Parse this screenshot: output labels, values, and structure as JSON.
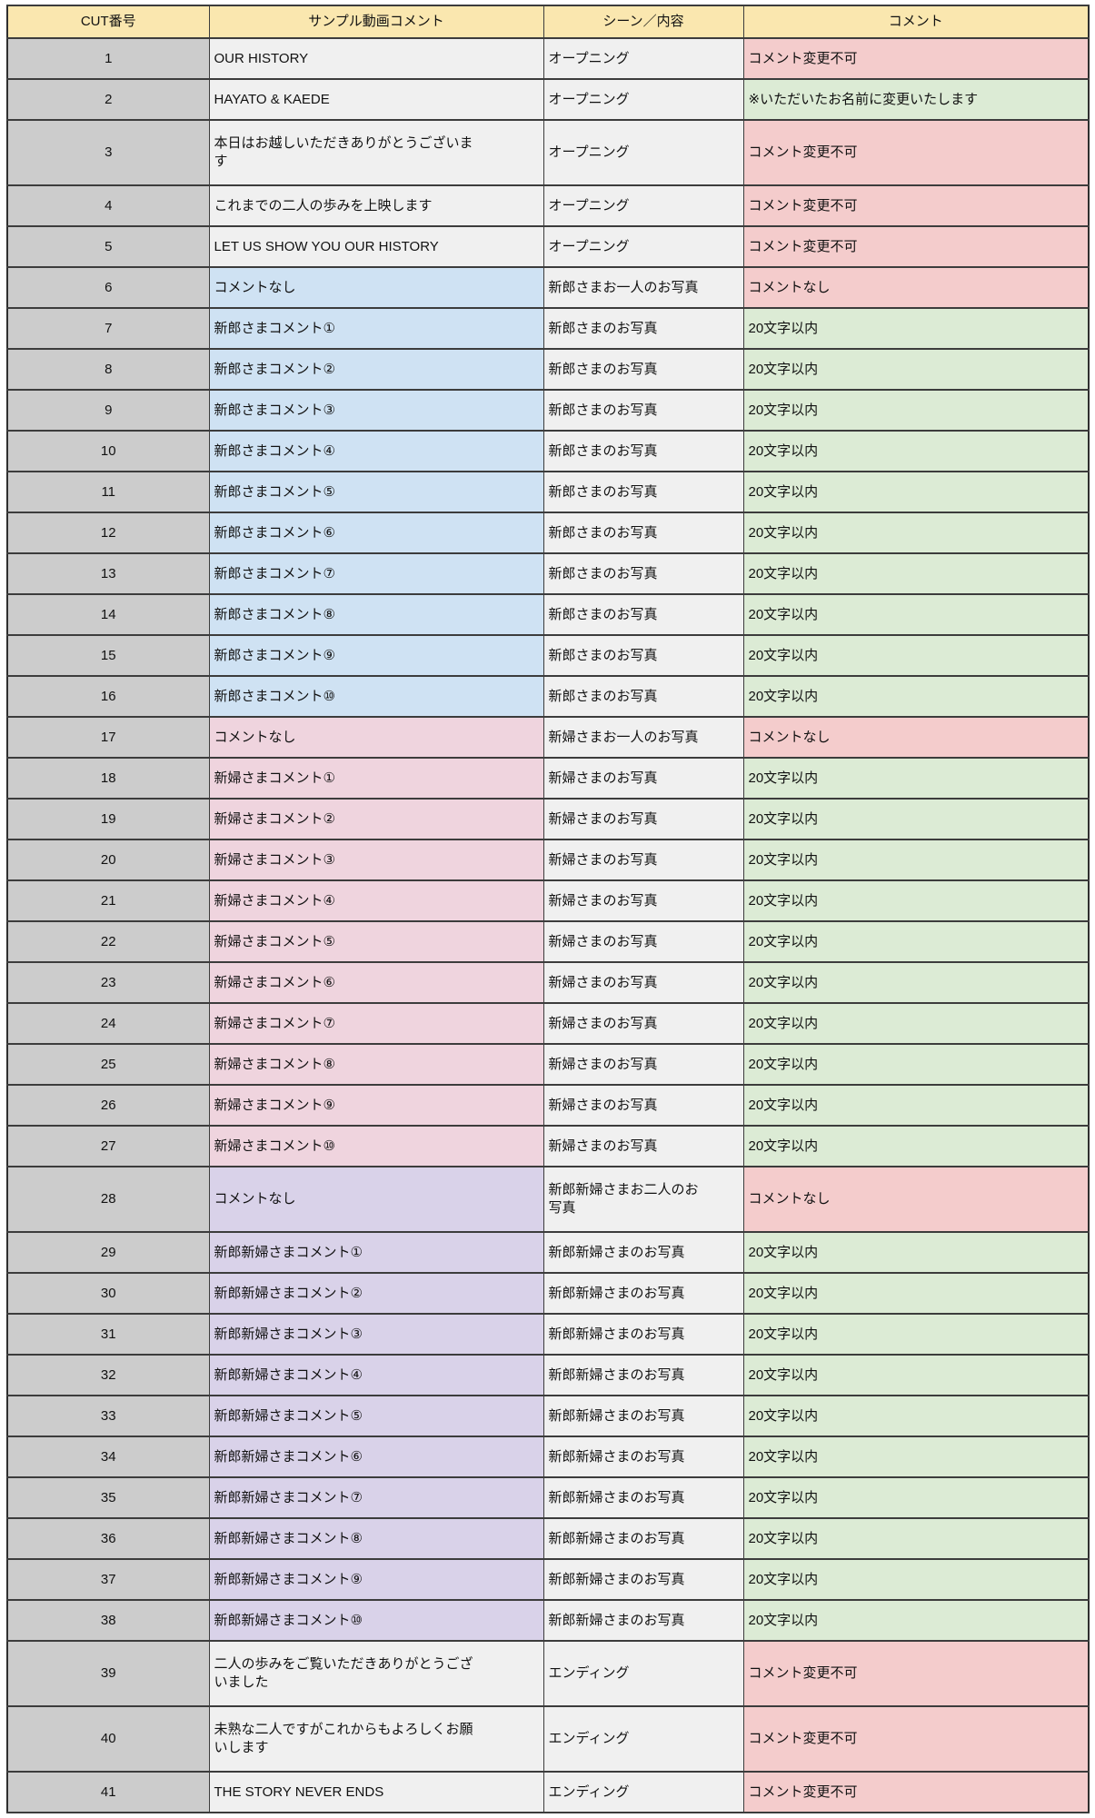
{
  "colors": {
    "header_bg": "#fae7af",
    "cut_number_bg": "#cccccc",
    "plain_bg": "#f0f0f0",
    "groom_bg": "#cfe2f3",
    "bride_bg": "#efd4de",
    "couple_bg": "#d9d2e9",
    "editable_bg": "#dcebd5",
    "locked_bg": "#f4cccc",
    "border": "#3c3c3c"
  },
  "table": {
    "headers": [
      "CUT番号",
      "サンプル動画コメント",
      "シーン／内容",
      "コメント"
    ],
    "rows": [
      {
        "cut": "1",
        "sample": "OUR HISTORY",
        "sample_bg": "plain",
        "scene": "オープニング",
        "comment": "コメント変更不可",
        "comment_bg": "red"
      },
      {
        "cut": "2",
        "sample": "HAYATO & KAEDE",
        "sample_bg": "plain",
        "scene": "オープニング",
        "comment": "※いただいたお名前に変更いたします",
        "comment_bg": "green"
      },
      {
        "cut": "3",
        "sample": "本日はお越しいただきありがとうございま\nす",
        "sample_bg": "plain",
        "scene": "オープニング",
        "comment": "コメント変更不可",
        "comment_bg": "red"
      },
      {
        "cut": "4",
        "sample": "これまでの二人の歩みを上映します",
        "sample_bg": "plain",
        "scene": "オープニング",
        "comment": "コメント変更不可",
        "comment_bg": "red"
      },
      {
        "cut": "5",
        "sample": "LET US SHOW YOU OUR HISTORY",
        "sample_bg": "plain",
        "scene": "オープニング",
        "comment": "コメント変更不可",
        "comment_bg": "red"
      },
      {
        "cut": "6",
        "sample": "コメントなし",
        "sample_bg": "blue",
        "scene": "新郎さまお一人のお写真",
        "comment": "コメントなし",
        "comment_bg": "red"
      },
      {
        "cut": "7",
        "sample": "新郎さまコメント①",
        "sample_bg": "blue",
        "scene": "新郎さまのお写真",
        "comment": "20文字以内",
        "comment_bg": "green"
      },
      {
        "cut": "8",
        "sample": "新郎さまコメント②",
        "sample_bg": "blue",
        "scene": "新郎さまのお写真",
        "comment": "20文字以内",
        "comment_bg": "green"
      },
      {
        "cut": "9",
        "sample": "新郎さまコメント③",
        "sample_bg": "blue",
        "scene": "新郎さまのお写真",
        "comment": "20文字以内",
        "comment_bg": "green"
      },
      {
        "cut": "10",
        "sample": "新郎さまコメント④",
        "sample_bg": "blue",
        "scene": "新郎さまのお写真",
        "comment": "20文字以内",
        "comment_bg": "green"
      },
      {
        "cut": "11",
        "sample": "新郎さまコメント⑤",
        "sample_bg": "blue",
        "scene": "新郎さまのお写真",
        "comment": "20文字以内",
        "comment_bg": "green"
      },
      {
        "cut": "12",
        "sample": "新郎さまコメント⑥",
        "sample_bg": "blue",
        "scene": "新郎さまのお写真",
        "comment": "20文字以内",
        "comment_bg": "green"
      },
      {
        "cut": "13",
        "sample": "新郎さまコメント⑦",
        "sample_bg": "blue",
        "scene": "新郎さまのお写真",
        "comment": "20文字以内",
        "comment_bg": "green"
      },
      {
        "cut": "14",
        "sample": "新郎さまコメント⑧",
        "sample_bg": "blue",
        "scene": "新郎さまのお写真",
        "comment": "20文字以内",
        "comment_bg": "green"
      },
      {
        "cut": "15",
        "sample": "新郎さまコメント⑨",
        "sample_bg": "blue",
        "scene": "新郎さまのお写真",
        "comment": "20文字以内",
        "comment_bg": "green"
      },
      {
        "cut": "16",
        "sample": "新郎さまコメント⑩",
        "sample_bg": "blue",
        "scene": "新郎さまのお写真",
        "comment": "20文字以内",
        "comment_bg": "green"
      },
      {
        "cut": "17",
        "sample": "コメントなし",
        "sample_bg": "pink",
        "scene": "新婦さまお一人のお写真",
        "comment": "コメントなし",
        "comment_bg": "red"
      },
      {
        "cut": "18",
        "sample": "新婦さまコメント①",
        "sample_bg": "pink",
        "scene": "新婦さまのお写真",
        "comment": "20文字以内",
        "comment_bg": "green"
      },
      {
        "cut": "19",
        "sample": "新婦さまコメント②",
        "sample_bg": "pink",
        "scene": "新婦さまのお写真",
        "comment": "20文字以内",
        "comment_bg": "green"
      },
      {
        "cut": "20",
        "sample": "新婦さまコメント③",
        "sample_bg": "pink",
        "scene": "新婦さまのお写真",
        "comment": "20文字以内",
        "comment_bg": "green"
      },
      {
        "cut": "21",
        "sample": "新婦さまコメント④",
        "sample_bg": "pink",
        "scene": "新婦さまのお写真",
        "comment": "20文字以内",
        "comment_bg": "green"
      },
      {
        "cut": "22",
        "sample": "新婦さまコメント⑤",
        "sample_bg": "pink",
        "scene": "新婦さまのお写真",
        "comment": "20文字以内",
        "comment_bg": "green"
      },
      {
        "cut": "23",
        "sample": "新婦さまコメント⑥",
        "sample_bg": "pink",
        "scene": "新婦さまのお写真",
        "comment": "20文字以内",
        "comment_bg": "green"
      },
      {
        "cut": "24",
        "sample": "新婦さまコメント⑦",
        "sample_bg": "pink",
        "scene": "新婦さまのお写真",
        "comment": "20文字以内",
        "comment_bg": "green"
      },
      {
        "cut": "25",
        "sample": "新婦さまコメント⑧",
        "sample_bg": "pink",
        "scene": "新婦さまのお写真",
        "comment": "20文字以内",
        "comment_bg": "green"
      },
      {
        "cut": "26",
        "sample": "新婦さまコメント⑨",
        "sample_bg": "pink",
        "scene": "新婦さまのお写真",
        "comment": "20文字以内",
        "comment_bg": "green"
      },
      {
        "cut": "27",
        "sample": "新婦さまコメント⑩",
        "sample_bg": "pink",
        "scene": "新婦さまのお写真",
        "comment": "20文字以内",
        "comment_bg": "green"
      },
      {
        "cut": "28",
        "sample": "コメントなし",
        "sample_bg": "purple",
        "scene": "新郎新婦さまお二人のお\n写真",
        "comment": "コメントなし",
        "comment_bg": "red"
      },
      {
        "cut": "29",
        "sample": "新郎新婦さまコメント①",
        "sample_bg": "purple",
        "scene": "新郎新婦さまのお写真",
        "comment": "20文字以内",
        "comment_bg": "green"
      },
      {
        "cut": "30",
        "sample": "新郎新婦さまコメント②",
        "sample_bg": "purple",
        "scene": "新郎新婦さまのお写真",
        "comment": "20文字以内",
        "comment_bg": "green"
      },
      {
        "cut": "31",
        "sample": "新郎新婦さまコメント③",
        "sample_bg": "purple",
        "scene": "新郎新婦さまのお写真",
        "comment": "20文字以内",
        "comment_bg": "green"
      },
      {
        "cut": "32",
        "sample": "新郎新婦さまコメント④",
        "sample_bg": "purple",
        "scene": "新郎新婦さまのお写真",
        "comment": "20文字以内",
        "comment_bg": "green"
      },
      {
        "cut": "33",
        "sample": "新郎新婦さまコメント⑤",
        "sample_bg": "purple",
        "scene": "新郎新婦さまのお写真",
        "comment": "20文字以内",
        "comment_bg": "green"
      },
      {
        "cut": "34",
        "sample": "新郎新婦さまコメント⑥",
        "sample_bg": "purple",
        "scene": "新郎新婦さまのお写真",
        "comment": "20文字以内",
        "comment_bg": "green"
      },
      {
        "cut": "35",
        "sample": "新郎新婦さまコメント⑦",
        "sample_bg": "purple",
        "scene": "新郎新婦さまのお写真",
        "comment": "20文字以内",
        "comment_bg": "green"
      },
      {
        "cut": "36",
        "sample": "新郎新婦さまコメント⑧",
        "sample_bg": "purple",
        "scene": "新郎新婦さまのお写真",
        "comment": "20文字以内",
        "comment_bg": "green"
      },
      {
        "cut": "37",
        "sample": "新郎新婦さまコメント⑨",
        "sample_bg": "purple",
        "scene": "新郎新婦さまのお写真",
        "comment": "20文字以内",
        "comment_bg": "green"
      },
      {
        "cut": "38",
        "sample": "新郎新婦さまコメント⑩",
        "sample_bg": "purple",
        "scene": "新郎新婦さまのお写真",
        "comment": "20文字以内",
        "comment_bg": "green"
      },
      {
        "cut": "39",
        "sample": "二人の歩みをご覧いただきありがとうござ\nいました",
        "sample_bg": "plain",
        "scene": "エンディング",
        "comment": "コメント変更不可",
        "comment_bg": "red"
      },
      {
        "cut": "40",
        "sample": "未熟な二人ですがこれからもよろしくお願\nいします",
        "sample_bg": "plain",
        "scene": "エンディング",
        "comment": "コメント変更不可",
        "comment_bg": "red"
      },
      {
        "cut": "41",
        "sample": "THE STORY NEVER ENDS",
        "sample_bg": "plain",
        "scene": "エンディング",
        "comment": "コメント変更不可",
        "comment_bg": "red"
      }
    ]
  }
}
